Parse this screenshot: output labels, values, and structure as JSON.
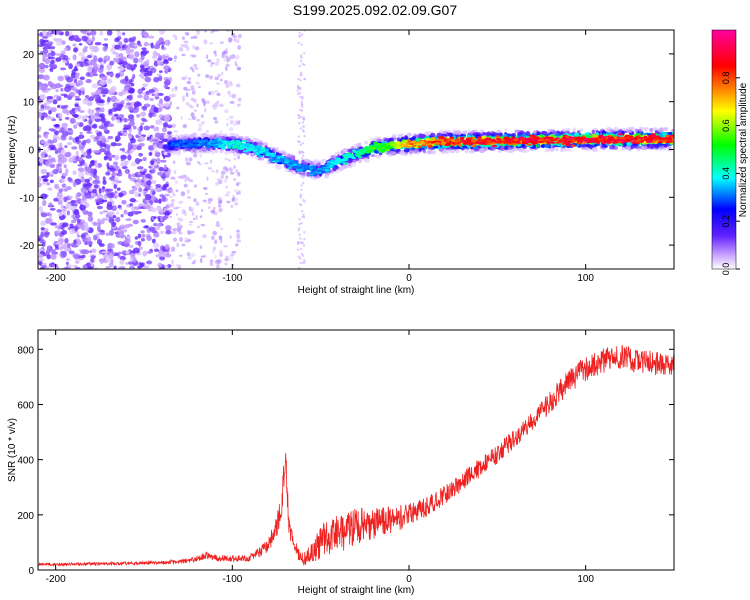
{
  "title": "S199.2025.092.02.09.G07",
  "chart_data": [
    {
      "type": "heatmap",
      "xlabel": "Height of straight line (km)",
      "ylabel": "Frequency (Hz)",
      "xlim": [
        -210,
        150
      ],
      "ylim": [
        -25,
        25
      ],
      "xticks": [
        -200,
        -100,
        0,
        100
      ],
      "yticks": [
        -20,
        -10,
        0,
        10,
        20
      ],
      "colorbar": {
        "label": "Normalized spectral amplitude",
        "range": [
          0,
          1
        ],
        "ticks": [
          "0.0",
          "0.2",
          "0.4",
          "0.6",
          "0.8"
        ],
        "colors": [
          "#ffffff",
          "#c8a0ff",
          "#6020ff",
          "#0000ff",
          "#00ffff",
          "#00ff00",
          "#ffff00",
          "#ff0000",
          "#ff00a0"
        ]
      },
      "ridge": {
        "x": [
          -135,
          -120,
          -110,
          -100,
          -90,
          -80,
          -70,
          -60,
          -50,
          -40,
          -30,
          -20,
          -10,
          0,
          20,
          50,
          80,
          110,
          150
        ],
        "y": [
          1,
          1.2,
          1.3,
          1.2,
          0.5,
          -0.8,
          -2.5,
          -3.8,
          -4.5,
          -2.5,
          -1,
          0.2,
          0.8,
          1.2,
          1.6,
          1.8,
          2.0,
          2.1,
          2.2
        ],
        "amplitude": [
          0.3,
          0.32,
          0.35,
          0.42,
          0.4,
          0.38,
          0.35,
          0.34,
          0.33,
          0.4,
          0.45,
          0.55,
          0.6,
          0.75,
          0.85,
          0.9,
          0.92,
          0.92,
          0.9
        ]
      }
    },
    {
      "type": "line",
      "xlabel": "Height of straight line (km)",
      "ylabel": "SNR (10 * v/v)",
      "xlim": [
        -210,
        150
      ],
      "ylim": [
        0,
        870
      ],
      "xticks": [
        -200,
        -100,
        0,
        100
      ],
      "yticks": [
        0,
        200,
        400,
        600,
        800
      ],
      "color": "#ee2020",
      "x": [
        -210,
        -180,
        -150,
        -130,
        -120,
        -115,
        -110,
        -100,
        -90,
        -85,
        -80,
        -75,
        -72,
        -70,
        -69,
        -68,
        -65,
        -60,
        -55,
        -50,
        -45,
        -40,
        -30,
        -20,
        -10,
        0,
        10,
        20,
        30,
        40,
        50,
        60,
        70,
        80,
        90,
        100,
        110,
        120,
        130,
        140,
        150
      ],
      "y": [
        20,
        22,
        25,
        30,
        40,
        55,
        45,
        40,
        45,
        60,
        90,
        150,
        250,
        420,
        300,
        160,
        80,
        40,
        60,
        100,
        120,
        130,
        160,
        170,
        180,
        200,
        230,
        270,
        320,
        370,
        420,
        480,
        540,
        610,
        680,
        730,
        760,
        770,
        760,
        750,
        740
      ],
      "noise": [
        5,
        5,
        6,
        8,
        10,
        15,
        12,
        12,
        14,
        18,
        25,
        40,
        50,
        60,
        60,
        40,
        30,
        25,
        35,
        60,
        70,
        70,
        70,
        60,
        50,
        40,
        35,
        35,
        35,
        35,
        35,
        35,
        35,
        40,
        45,
        45,
        45,
        45,
        45,
        45,
        45
      ]
    }
  ]
}
